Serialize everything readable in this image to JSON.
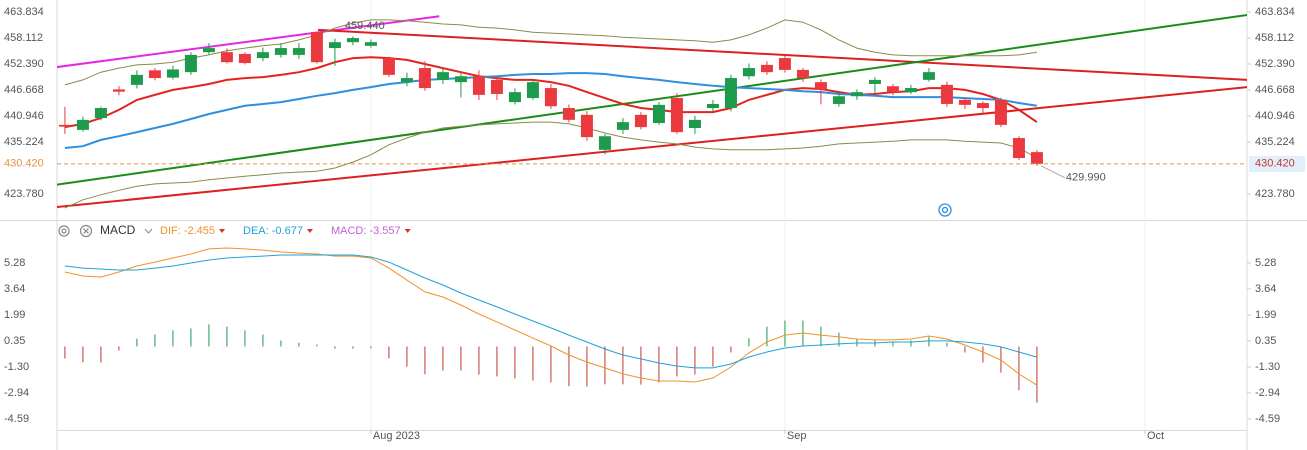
{
  "chart_data": [
    {
      "type": "candlestick",
      "xlim": [
        -0.44,
        65.67
      ],
      "ylim": [
        418.06,
        466.48
      ],
      "yticks": [
        463.834,
        458.112,
        {
          "value": 452.39,
          "label": "452.390"
        },
        446.668,
        440.946,
        435.224,
        {
          "value": 423.78,
          "label": "423.780"
        }
      ],
      "up_color": "#1d9a4c",
      "down_color": "#ea3a3f",
      "open": [
        439.0,
        437.9,
        440.5,
        446.8,
        447.8,
        451.0,
        449.4,
        450.6,
        455.0,
        455.0,
        454.6,
        453.7,
        454.4,
        454.4,
        459.4,
        455.9,
        457.2,
        456.4,
        453.7,
        448.4,
        451.5,
        448.9,
        448.4,
        449.7,
        448.9,
        444.0,
        444.9,
        447.1,
        442.7,
        441.2,
        433.5,
        437.9,
        441.2,
        439.4,
        444.9,
        438.3,
        442.7,
        442.7,
        449.7,
        452.2,
        453.7,
        451.1,
        448.4,
        443.6,
        445.3,
        448.0,
        447.5,
        446.2,
        448.9,
        447.8,
        444.5,
        443.8,
        444.5,
        436.1,
        433.0
      ],
      "high": [
        443.0,
        440.8,
        443.0,
        447.5,
        451.0,
        451.5,
        452.0,
        455.0,
        457.0,
        455.8,
        455.0,
        456.0,
        457.0,
        457.0,
        459.44,
        458.0,
        458.5,
        457.8,
        454.0,
        450.5,
        453.0,
        451.5,
        450.5,
        451.0,
        449.5,
        447.0,
        449.0,
        448.0,
        443.5,
        442.0,
        437.0,
        440.5,
        441.8,
        444.0,
        446.0,
        441.0,
        444.5,
        450.0,
        452.5,
        453.0,
        454.2,
        451.5,
        449.0,
        446.0,
        446.8,
        449.5,
        448.0,
        447.8,
        451.5,
        448.5,
        445.0,
        444.2,
        445.0,
        436.5,
        433.5
      ],
      "low": [
        437.0,
        437.5,
        440.0,
        445.5,
        447.0,
        448.8,
        449.0,
        450.0,
        454.5,
        452.5,
        452.3,
        453.0,
        453.8,
        453.5,
        452.5,
        452.0,
        456.5,
        456.0,
        449.5,
        447.5,
        446.5,
        448.0,
        445.0,
        444.5,
        444.5,
        443.5,
        444.5,
        442.5,
        439.5,
        435.5,
        432.5,
        437.0,
        438.0,
        439.0,
        437.0,
        437.0,
        442.0,
        442.0,
        449.0,
        450.0,
        450.5,
        448.5,
        443.5,
        443.0,
        444.5,
        446.0,
        445.5,
        445.8,
        448.5,
        443.0,
        442.5,
        441.5,
        438.5,
        431.3,
        429.99
      ],
      "close": [
        438.6,
        440.1,
        442.7,
        446.3,
        450.0,
        449.3,
        451.2,
        454.4,
        455.9,
        452.8,
        452.6,
        455.0,
        455.9,
        455.9,
        452.8,
        457.2,
        458.1,
        457.2,
        450.0,
        449.3,
        447.1,
        450.6,
        449.7,
        445.6,
        445.8,
        446.2,
        448.4,
        443.1,
        440.1,
        436.3,
        436.5,
        439.6,
        438.5,
        443.4,
        437.4,
        440.1,
        443.6,
        449.3,
        451.5,
        450.6,
        451.1,
        449.3,
        446.7,
        445.3,
        446.2,
        448.9,
        446.2,
        447.1,
        450.6,
        443.6,
        443.4,
        442.7,
        439.0,
        431.7,
        430.42
      ],
      "overlays": [
        {
          "color": "#e3231c",
          "values": [
            438.5,
            439.2,
            440.5,
            442.3,
            444.5,
            445.6,
            446.7,
            447.3,
            448.0,
            448.9,
            449.3,
            449.5,
            450.0,
            450.6,
            451.5,
            452.8,
            453.7,
            453.9,
            453.7,
            453.3,
            452.4,
            451.5,
            450.6,
            449.7,
            449.3,
            448.9,
            448.9,
            448.4,
            447.6,
            446.2,
            444.9,
            443.6,
            442.7,
            442.3,
            441.8,
            441.8,
            441.8,
            442.7,
            444.5,
            445.6,
            446.7,
            447.1,
            446.9,
            446.2,
            445.6,
            445.8,
            446.2,
            446.4,
            447.1,
            447.1,
            446.7,
            445.8,
            444.5,
            442.3,
            439.6
          ]
        },
        {
          "color": "#2f8fde",
          "values": [
            433.9,
            434.3,
            435.7,
            436.5,
            437.4,
            438.3,
            439.2,
            440.3,
            441.4,
            442.3,
            443.2,
            443.6,
            444.0,
            444.7,
            445.4,
            446.0,
            446.7,
            447.3,
            448.0,
            448.4,
            448.9,
            449.1,
            449.3,
            449.5,
            449.7,
            450.0,
            450.2,
            450.2,
            450.4,
            450.4,
            450.2,
            449.7,
            449.3,
            448.9,
            448.4,
            448.0,
            447.6,
            447.3,
            447.1,
            446.9,
            446.7,
            446.4,
            446.2,
            445.8,
            445.6,
            445.4,
            445.1,
            445.1,
            445.1,
            445.1,
            444.9,
            444.7,
            444.5,
            443.8,
            443.2
          ]
        },
        {
          "color": "#8a8a4c",
          "values": [
            447.8,
            448.9,
            450.6,
            451.5,
            452.2,
            452.4,
            452.8,
            453.7,
            454.4,
            455.3,
            455.9,
            456.4,
            456.8,
            457.7,
            458.8,
            460.3,
            461.4,
            462.1,
            462.1,
            461.9,
            461.6,
            461.2,
            461.0,
            460.5,
            460.3,
            459.9,
            459.4,
            459.2,
            459.0,
            458.8,
            458.6,
            458.3,
            458.1,
            457.9,
            457.7,
            457.5,
            457.2,
            457.7,
            458.8,
            460.3,
            462.1,
            461.6,
            459.9,
            457.7,
            455.9,
            455.0,
            454.4,
            454.2,
            454.2,
            454.2,
            454.2,
            454.2,
            454.2,
            454.4,
            455.0
          ]
        },
        {
          "color": "#8a8a4c",
          "values": [
            420.7,
            422.5,
            423.6,
            424.6,
            425.5,
            426.0,
            426.2,
            426.4,
            426.9,
            427.3,
            427.7,
            428.0,
            428.4,
            428.6,
            428.8,
            429.5,
            430.8,
            432.4,
            434.6,
            436.1,
            437.4,
            438.3,
            438.7,
            439.0,
            439.2,
            439.4,
            439.6,
            439.6,
            439.2,
            438.3,
            437.2,
            436.3,
            435.7,
            435.2,
            434.8,
            434.1,
            433.7,
            433.5,
            433.5,
            433.5,
            433.7,
            433.9,
            434.3,
            434.8,
            435.0,
            435.2,
            435.4,
            435.7,
            435.7,
            435.7,
            435.4,
            435.2,
            435.0,
            433.9,
            431.7
          ]
        }
      ],
      "trend_lines": [
        {
          "color": "#e526e5",
          "x": [
            -0.5,
            20.8
          ],
          "y": [
            451.7,
            462.9
          ]
        },
        {
          "color": "#dd1f1f",
          "x": [
            14.06,
            65.7
          ],
          "y": [
            459.9,
            448.9
          ]
        },
        {
          "color": "#dd1f1f",
          "x": [
            -0.5,
            65.7
          ],
          "y": [
            420.9,
            447.3
          ]
        },
        {
          "color": "#1a8c1a",
          "x": [
            -0.5,
            65.7
          ],
          "y": [
            425.8,
            463.2
          ]
        }
      ],
      "last_price": {
        "value": 430.42,
        "label": "430.420"
      },
      "last_price_color": "#e8913a",
      "high_label": "459.440",
      "low_label": "429.990"
    },
    {
      "type": "macd",
      "indicator": "MACD",
      "xlim": [
        -0.44,
        65.67
      ],
      "xticks": [
        {
          "value": 17,
          "label": "Aug 2023"
        },
        {
          "value": 40,
          "label": "Sep"
        },
        {
          "value": 60,
          "label": "Oct"
        }
      ],
      "ylim": [
        -5.29,
        6.42
      ],
      "yticks": [
        5.28,
        3.64,
        1.99,
        0.35,
        {
          "value": -1.3,
          "label": "-1.30"
        },
        -2.94,
        -4.59
      ],
      "lines": [
        {
          "label": "DIF: -2.455",
          "color": "#f0922b",
          "values": [
            4.71,
            4.46,
            4.39,
            4.71,
            5.09,
            5.34,
            5.6,
            5.85,
            6.17,
            6.23,
            6.17,
            6.1,
            5.98,
            5.91,
            5.85,
            5.72,
            5.72,
            5.6,
            4.96,
            4.2,
            3.45,
            3.13,
            2.62,
            2.05,
            1.55,
            1.04,
            0.53,
            0.03,
            -0.54,
            -0.99,
            -1.36,
            -1.74,
            -2.0,
            -2.19,
            -2.19,
            -2.25,
            -2.0,
            -1.3,
            -0.41,
            0.28,
            0.72,
            0.85,
            0.72,
            0.6,
            0.47,
            0.41,
            0.41,
            0.47,
            0.66,
            0.47,
            0.09,
            -0.35,
            -0.86,
            -1.74,
            -2.455
          ]
        },
        {
          "label": "DEA: -0.677",
          "color": "#1fa3d8",
          "values": [
            5.09,
            4.96,
            4.9,
            4.84,
            4.84,
            4.96,
            5.09,
            5.28,
            5.47,
            5.6,
            5.66,
            5.72,
            5.79,
            5.79,
            5.79,
            5.79,
            5.79,
            5.66,
            5.34,
            4.84,
            4.33,
            3.89,
            3.38,
            2.94,
            2.5,
            2.05,
            1.61,
            1.17,
            0.72,
            0.28,
            -0.16,
            -0.54,
            -0.79,
            -1.05,
            -1.24,
            -1.36,
            -1.36,
            -1.11,
            -0.67,
            -0.35,
            -0.1,
            0.03,
            0.09,
            0.16,
            0.22,
            0.22,
            0.28,
            0.28,
            0.35,
            0.35,
            0.28,
            0.16,
            -0.03,
            -0.35,
            -0.677
          ]
        }
      ],
      "histogram": {
        "label": "MACD: -3.557",
        "color": "#c35fd6",
        "up_color": "#1d9a4c",
        "down_color": "#c0392b",
        "values": [
          -0.76,
          -1.0,
          -1.02,
          -0.26,
          0.5,
          0.76,
          1.02,
          1.14,
          1.4,
          1.26,
          1.02,
          0.76,
          0.38,
          0.24,
          0.12,
          -0.14,
          -0.14,
          -0.12,
          -0.76,
          -1.28,
          -1.76,
          -1.52,
          -1.52,
          -1.78,
          -1.9,
          -2.02,
          -2.16,
          -2.28,
          -2.52,
          -2.54,
          -2.4,
          -2.4,
          -2.42,
          -2.28,
          -1.9,
          -1.78,
          -1.28,
          -0.38,
          0.52,
          1.26,
          1.64,
          1.64,
          1.26,
          0.88,
          0.5,
          0.38,
          0.26,
          0.38,
          0.62,
          0.24,
          -0.38,
          -1.02,
          -1.66,
          -2.78,
          -3.557
        ]
      }
    }
  ]
}
